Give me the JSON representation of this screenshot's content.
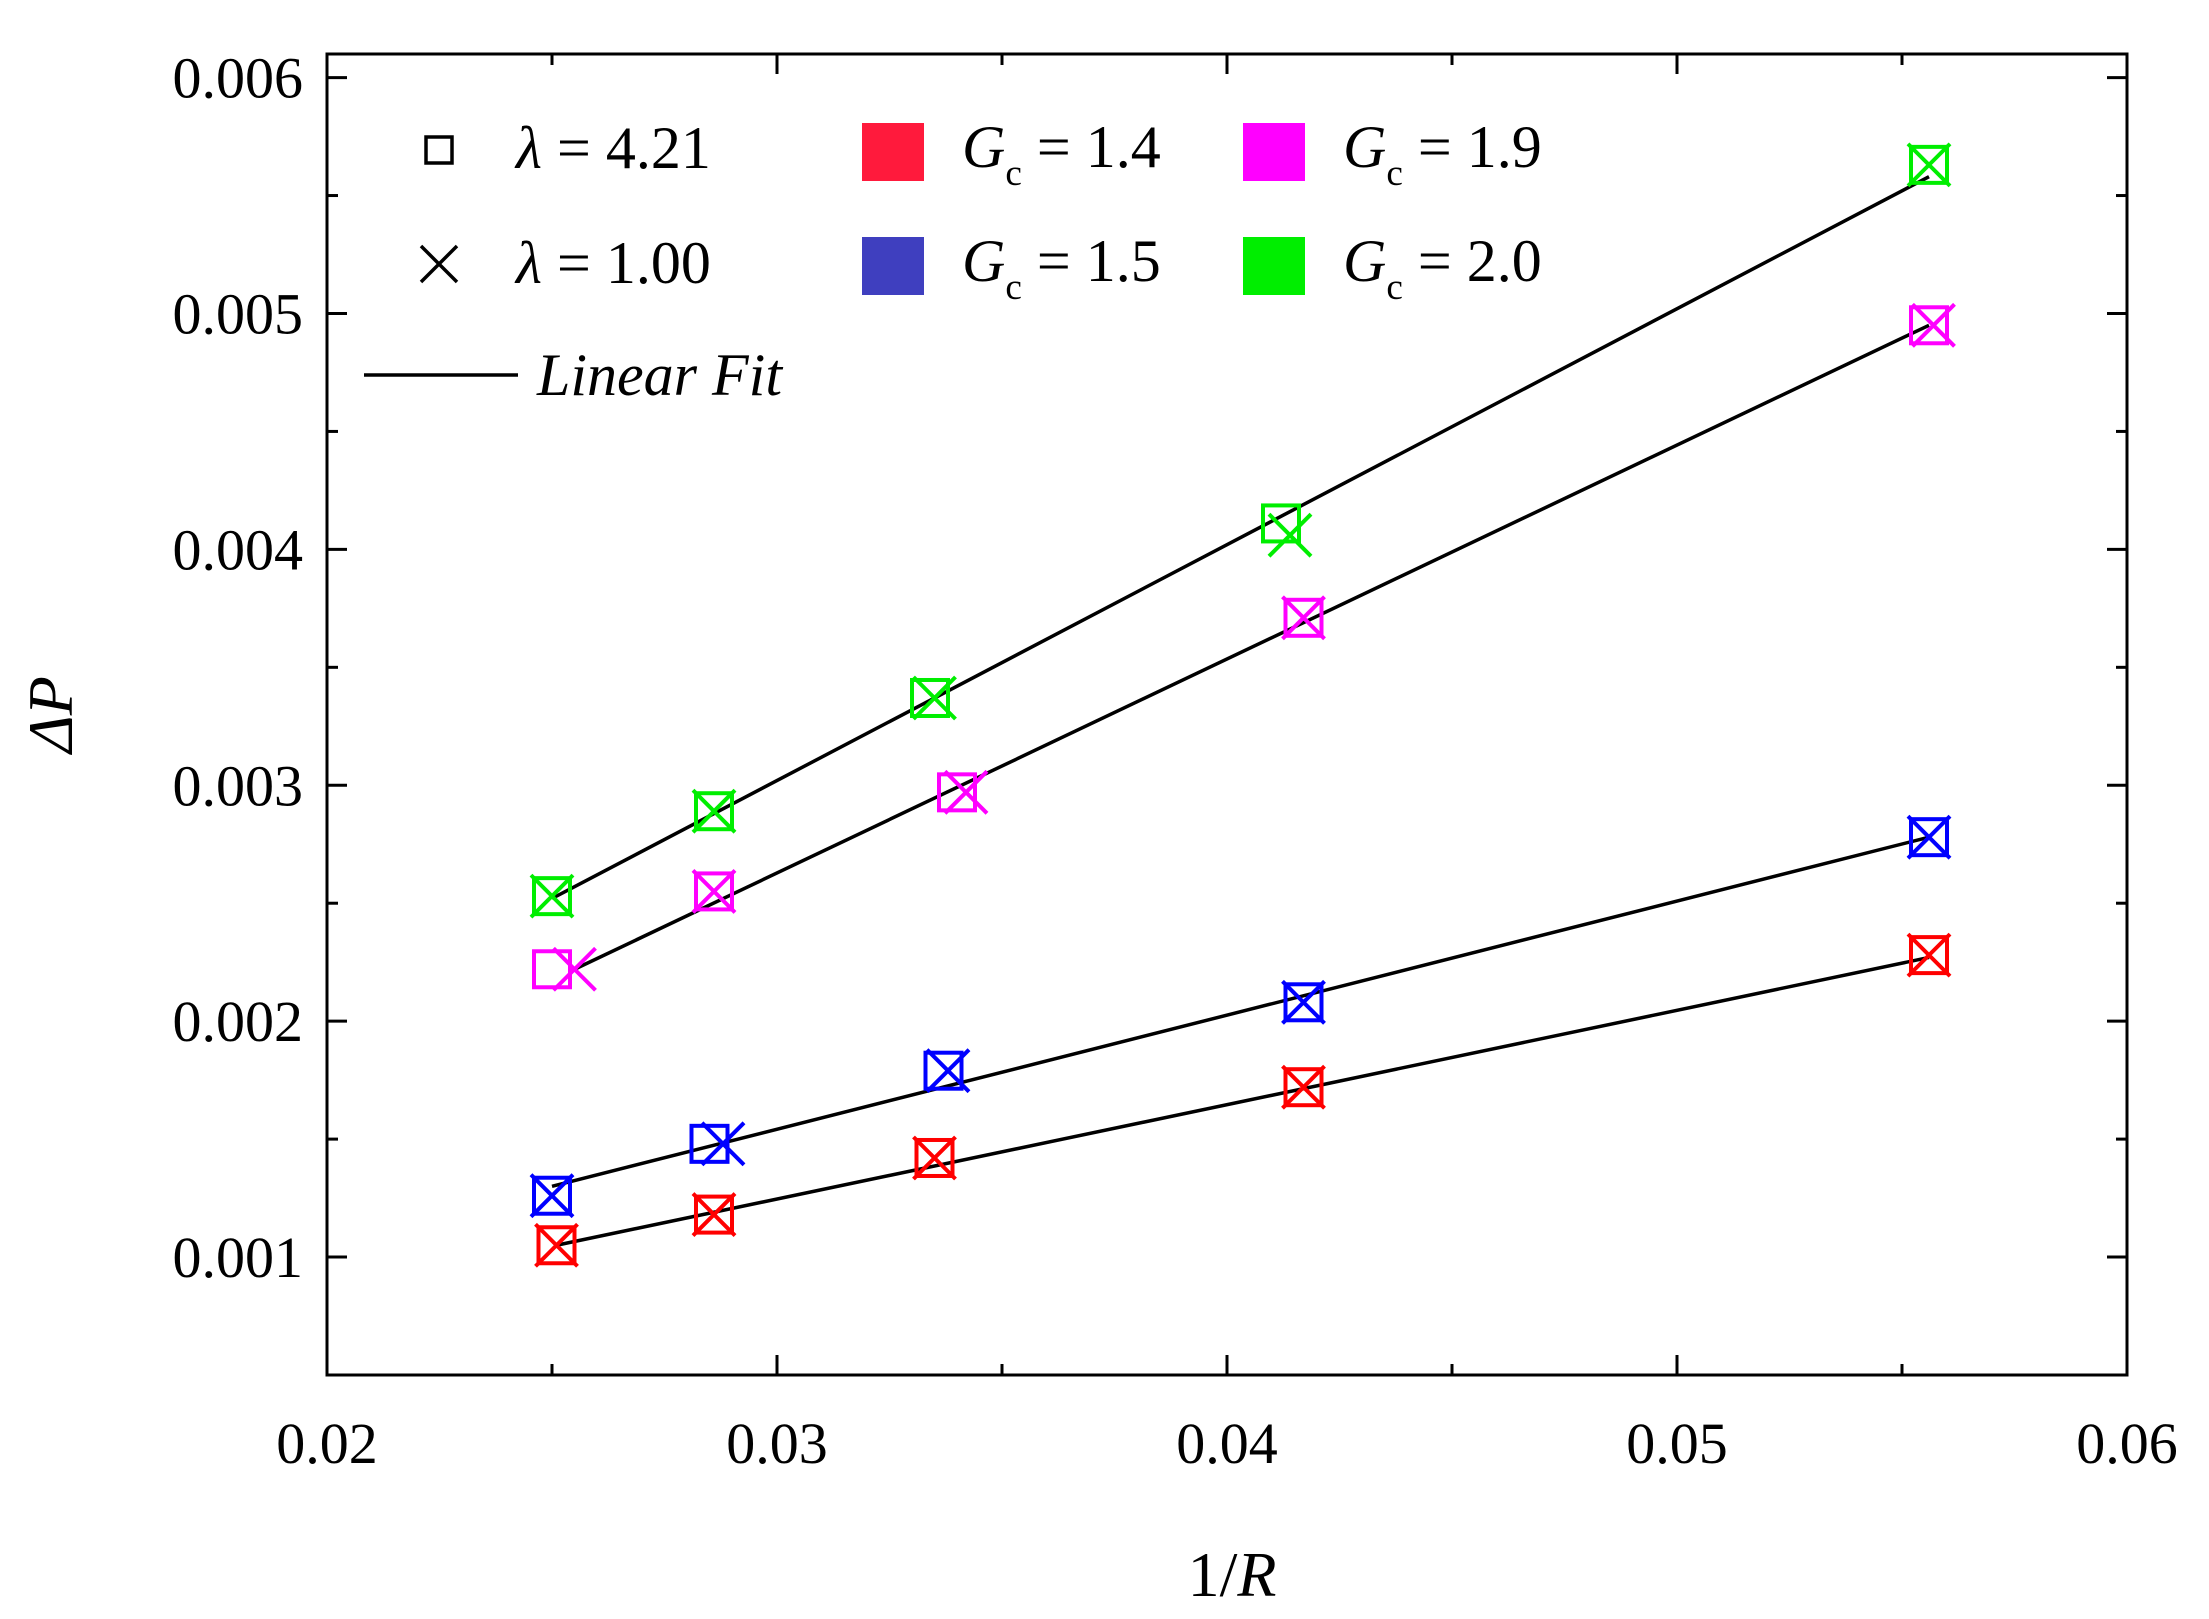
{
  "chart_data": {
    "type": "scatter",
    "title": "",
    "xlabel": "1/R",
    "ylabel": "ΔP",
    "xlim": [
      0.02,
      0.06
    ],
    "ylim": [
      0.0005,
      0.0061
    ],
    "xticks": [
      0.02,
      0.03,
      0.04,
      0.05,
      0.06
    ],
    "xtick_labels": [
      "0.02",
      "0.03",
      "0.04",
      "0.05",
      "0.06"
    ],
    "yticks": [
      0.001,
      0.002,
      0.003,
      0.004,
      0.005,
      0.006
    ],
    "ytick_labels": [
      "0.001",
      "0.002",
      "0.003",
      "0.004",
      "0.005",
      "0.006"
    ],
    "grid": false,
    "legend_position": "top-left",
    "legend": {
      "markers": [
        {
          "symbol": "square",
          "label": "λ = 4.21"
        },
        {
          "symbol": "cross",
          "label": "λ = 1.00"
        }
      ],
      "line": {
        "label": "Linear Fit"
      },
      "colors": [
        {
          "label": "Gc = 1.4",
          "color": "#ff1a3c"
        },
        {
          "label": "Gc = 1.5",
          "color": "#3f3fbf"
        },
        {
          "label": "Gc = 1.9",
          "color": "#ff00ff"
        },
        {
          "label": "Gc = 2.0",
          "color": "#00ee00"
        }
      ]
    },
    "series": [
      {
        "name": "Gc = 1.4",
        "color": "#ff0000",
        "square_points": [
          [
            0.0251,
            0.00105
          ],
          [
            0.0286,
            0.00118
          ],
          [
            0.0335,
            0.00142
          ],
          [
            0.0417,
            0.00172
          ],
          [
            0.0556,
            0.00228
          ]
        ],
        "cross_points": [
          [
            0.0251,
            0.00105
          ],
          [
            0.0286,
            0.00118
          ],
          [
            0.0335,
            0.00142
          ],
          [
            0.0417,
            0.00172
          ],
          [
            0.0556,
            0.00228
          ]
        ],
        "fit": [
          [
            0.0251,
            0.00105
          ],
          [
            0.0556,
            0.00227
          ]
        ]
      },
      {
        "name": "Gc = 1.5",
        "color": "#0000ff",
        "square_points": [
          [
            0.025,
            0.00126
          ],
          [
            0.0285,
            0.00148
          ],
          [
            0.0337,
            0.00179
          ],
          [
            0.0417,
            0.00208
          ],
          [
            0.0556,
            0.00278
          ]
        ],
        "cross_points": [
          [
            0.025,
            0.00126
          ],
          [
            0.0288,
            0.00148
          ],
          [
            0.0338,
            0.00179
          ],
          [
            0.0417,
            0.00208
          ],
          [
            0.0556,
            0.00278
          ]
        ],
        "fit": [
          [
            0.025,
            0.0013
          ],
          [
            0.0556,
            0.00278
          ]
        ]
      },
      {
        "name": "Gc = 1.9",
        "color": "#ff00ff",
        "square_points": [
          [
            0.025,
            0.00222
          ],
          [
            0.0286,
            0.00255
          ],
          [
            0.034,
            0.00297
          ],
          [
            0.0417,
            0.00371
          ],
          [
            0.0556,
            0.00495
          ]
        ],
        "cross_points": [
          [
            0.0255,
            0.00222
          ],
          [
            0.0286,
            0.00255
          ],
          [
            0.0342,
            0.00297
          ],
          [
            0.0417,
            0.00371
          ],
          [
            0.0557,
            0.00495
          ]
        ],
        "fit": [
          [
            0.0255,
            0.00222
          ],
          [
            0.0556,
            0.00495
          ]
        ]
      },
      {
        "name": "Gc = 2.0",
        "color": "#00ee00",
        "square_points": [
          [
            0.025,
            0.00253
          ],
          [
            0.0286,
            0.00289
          ],
          [
            0.0334,
            0.00337
          ],
          [
            0.0412,
            0.00411
          ],
          [
            0.0556,
            0.00563
          ]
        ],
        "cross_points": [
          [
            0.025,
            0.00253
          ],
          [
            0.0286,
            0.00289
          ],
          [
            0.0335,
            0.00337
          ],
          [
            0.0414,
            0.00406
          ],
          [
            0.0556,
            0.00563
          ]
        ],
        "fit": [
          [
            0.025,
            0.00252
          ],
          [
            0.0556,
            0.00558
          ]
        ]
      }
    ]
  }
}
